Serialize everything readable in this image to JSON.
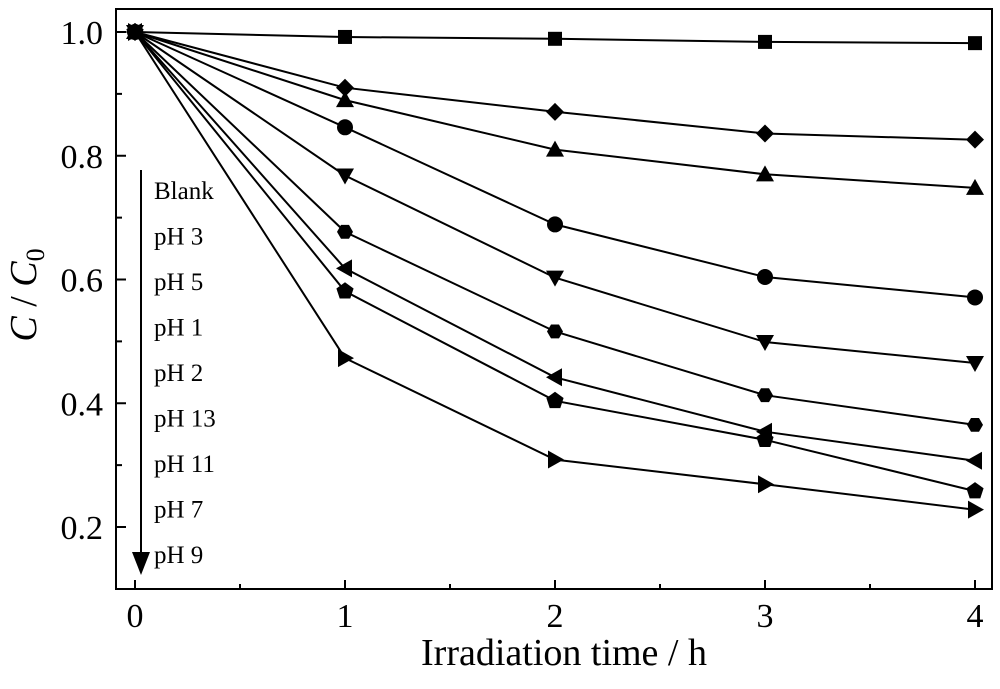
{
  "chart_data": {
    "type": "line",
    "xlabel": "Irradiation time / h",
    "ylabel": {
      "main": "C",
      "sep": " / ",
      "sub_main": "C",
      "subscript": "0"
    },
    "xlim": [
      -0.05,
      4.07
    ],
    "ylim": [
      0.1,
      1.04
    ],
    "xticks": [
      0,
      1,
      2,
      3,
      4
    ],
    "yticks": [
      0.2,
      0.4,
      0.6,
      0.8,
      1.0
    ],
    "ytick_labels": [
      "0.2",
      "0.4",
      "0.6",
      "0.8",
      "1.0"
    ],
    "grid": false,
    "legend_arrow": true,
    "x": [
      0,
      1,
      2,
      3,
      4
    ],
    "series": [
      {
        "name": "Blank",
        "marker": "square",
        "values": [
          1.0,
          0.992,
          0.989,
          0.984,
          0.982
        ]
      },
      {
        "name": "pH 3",
        "marker": "diamond",
        "values": [
          1.0,
          0.91,
          0.871,
          0.836,
          0.826
        ]
      },
      {
        "name": "pH 5",
        "marker": "triangle-up",
        "values": [
          1.0,
          0.89,
          0.81,
          0.77,
          0.748
        ]
      },
      {
        "name": "pH 1",
        "marker": "circle",
        "values": [
          1.0,
          0.846,
          0.689,
          0.604,
          0.571
        ]
      },
      {
        "name": "pH 2",
        "marker": "triangle-down",
        "values": [
          1.0,
          0.768,
          0.603,
          0.499,
          0.465
        ]
      },
      {
        "name": "pH 13",
        "marker": "hexagon",
        "values": [
          1.0,
          0.677,
          0.516,
          0.413,
          0.365
        ]
      },
      {
        "name": "pH 11",
        "marker": "triangle-left",
        "values": [
          1.0,
          0.618,
          0.442,
          0.354,
          0.307
        ]
      },
      {
        "name": "pH 7",
        "marker": "pentagon",
        "values": [
          1.0,
          0.581,
          0.404,
          0.341,
          0.258
        ]
      },
      {
        "name": "pH 9",
        "marker": "triangle-right",
        "values": [
          1.0,
          0.473,
          0.309,
          0.269,
          0.228
        ]
      }
    ]
  }
}
